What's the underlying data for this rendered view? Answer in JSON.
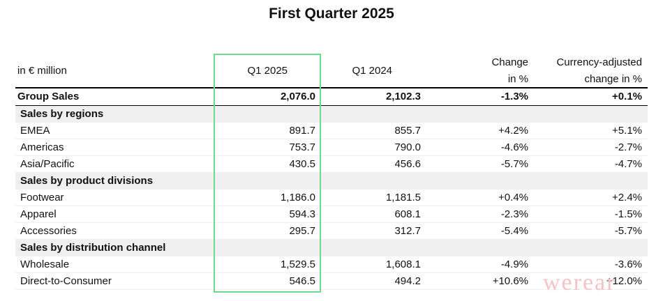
{
  "title": "First Quarter 2025",
  "header": {
    "unit": "in € million",
    "columns": [
      [
        "Q1 2025"
      ],
      [
        "Q1 2024"
      ],
      [
        "Change",
        "in %"
      ],
      [
        "Currency-adjusted",
        "change in %"
      ]
    ]
  },
  "total": {
    "label": "Group Sales",
    "cells": [
      "2,076.0",
      "2,102.3",
      "-1.3%",
      "+0.1%"
    ]
  },
  "sections": [
    {
      "title": "Sales by regions",
      "rows": [
        {
          "label": "EMEA",
          "cells": [
            "891.7",
            "855.7",
            "+4.2%",
            "+5.1%"
          ]
        },
        {
          "label": "Americas",
          "cells": [
            "753.7",
            "790.0",
            "-4.6%",
            "-2.7%"
          ]
        },
        {
          "label": "Asia/Pacific",
          "cells": [
            "430.5",
            "456.6",
            "-5.7%",
            "-4.7%"
          ]
        }
      ]
    },
    {
      "title": "Sales by product divisions",
      "rows": [
        {
          "label": "Footwear",
          "cells": [
            "1,186.0",
            "1,181.5",
            "+0.4%",
            "+2.4%"
          ]
        },
        {
          "label": "Apparel",
          "cells": [
            "594.3",
            "608.1",
            "-2.3%",
            "-1.5%"
          ]
        },
        {
          "label": "Accessories",
          "cells": [
            "295.7",
            "312.7",
            "-5.4%",
            "-5.7%"
          ]
        }
      ]
    },
    {
      "title": "Sales by distribution channel",
      "rows": [
        {
          "label": "Wholesale",
          "cells": [
            "1,529.5",
            "1,608.1",
            "-4.9%",
            "-3.6%"
          ]
        },
        {
          "label": "Direct-to-Consumer",
          "cells": [
            "546.5",
            "494.2",
            "+10.6%",
            "+12.0%"
          ]
        }
      ]
    }
  ],
  "watermark": "werear"
}
